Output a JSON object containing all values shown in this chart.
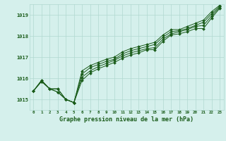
{
  "title": "Graphe pression niveau de la mer (hPa)",
  "bg_color": "#d5f0ec",
  "grid_color": "#b0d8d0",
  "line_color": "#1a5c1a",
  "marker_color": "#1a5c1a",
  "x_labels": [
    "0",
    "1",
    "2",
    "3",
    "4",
    "5",
    "6",
    "7",
    "8",
    "9",
    "10",
    "11",
    "12",
    "13",
    "14",
    "15",
    "16",
    "17",
    "18",
    "19",
    "20",
    "21",
    "22",
    "23"
  ],
  "ylim": [
    1014.5,
    1019.5
  ],
  "yticks": [
    1015,
    1016,
    1017,
    1018,
    1019
  ],
  "series": [
    [
      1015.4,
      1015.9,
      1015.5,
      1015.5,
      1015.0,
      1014.85,
      1015.9,
      1016.25,
      1016.45,
      1016.6,
      1016.75,
      1016.95,
      1017.1,
      1017.2,
      1017.35,
      1017.35,
      1017.75,
      1018.05,
      1018.1,
      1018.2,
      1018.35,
      1018.35,
      1018.85,
      1019.3
    ],
    [
      1015.4,
      1015.9,
      1015.5,
      1015.5,
      1015.0,
      1014.85,
      1016.05,
      1016.35,
      1016.55,
      1016.7,
      1016.85,
      1017.05,
      1017.2,
      1017.3,
      1017.4,
      1017.45,
      1017.85,
      1018.1,
      1018.2,
      1018.3,
      1018.45,
      1018.5,
      1018.95,
      1019.35
    ],
    [
      1015.4,
      1015.85,
      1015.5,
      1015.35,
      1015.0,
      1014.85,
      1016.2,
      1016.5,
      1016.65,
      1016.8,
      1016.9,
      1017.15,
      1017.3,
      1017.4,
      1017.5,
      1017.6,
      1017.95,
      1018.2,
      1018.25,
      1018.35,
      1018.5,
      1018.65,
      1019.05,
      1019.4
    ],
    [
      1015.4,
      1015.85,
      1015.5,
      1015.35,
      1015.0,
      1014.85,
      1016.35,
      1016.6,
      1016.75,
      1016.9,
      1017.0,
      1017.25,
      1017.4,
      1017.5,
      1017.6,
      1017.7,
      1018.05,
      1018.3,
      1018.3,
      1018.45,
      1018.6,
      1018.75,
      1019.15,
      1019.45
    ]
  ]
}
